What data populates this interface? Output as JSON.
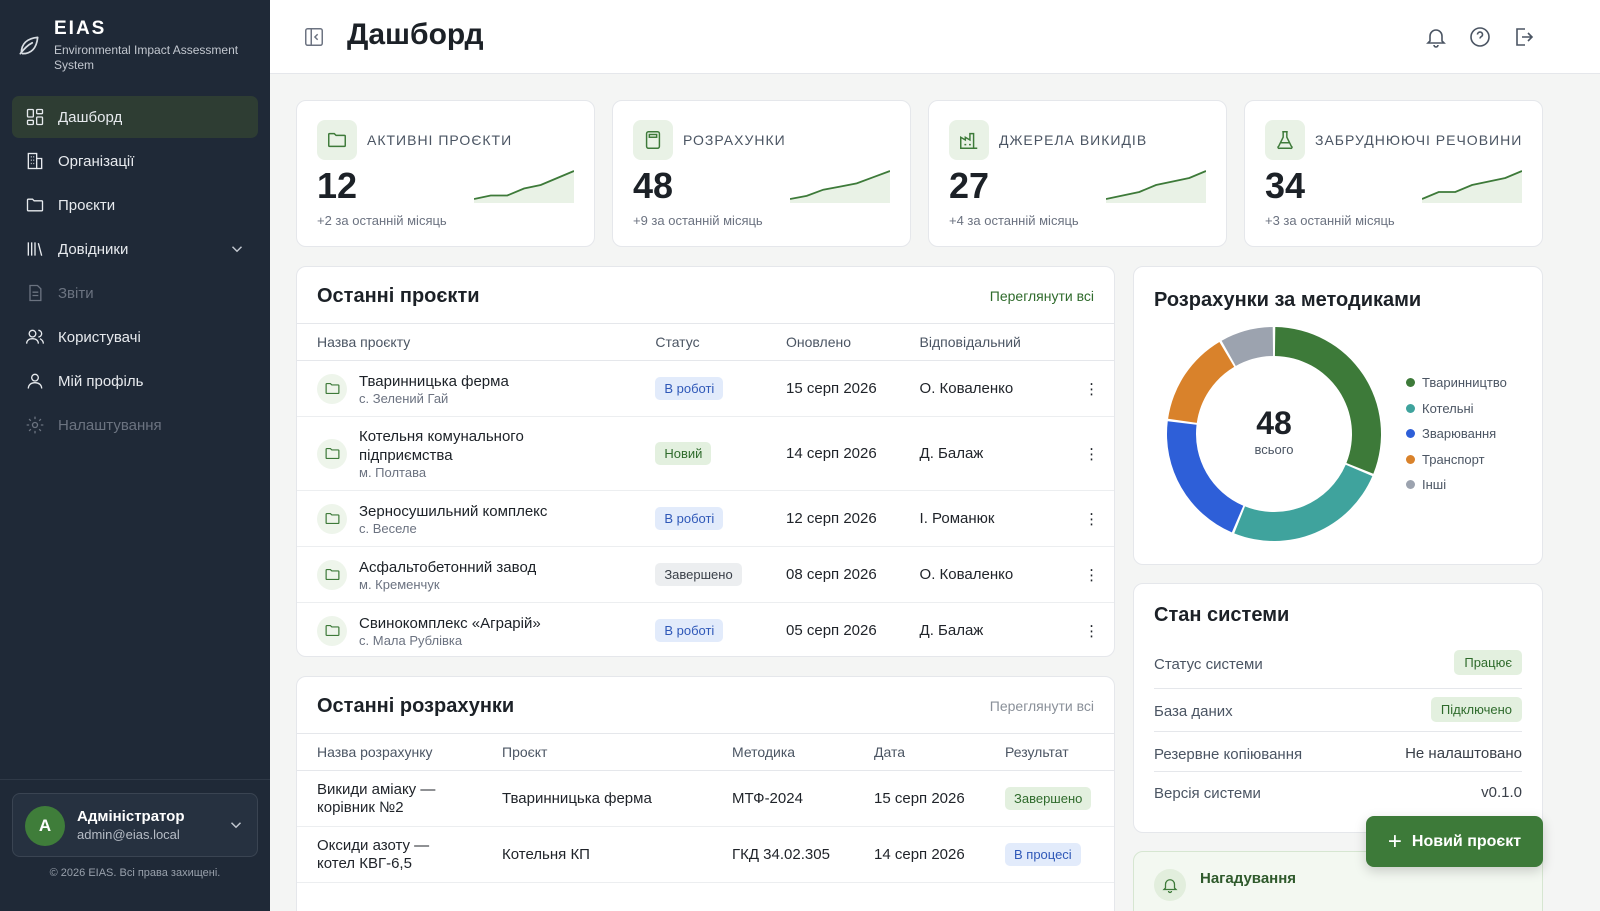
{
  "brand": {
    "name": "EIAS",
    "subtitle": "Environmental Impact Assessment System"
  },
  "sidebar": {
    "items": [
      {
        "label": "Дашборд",
        "icon": "dashboard-icon",
        "active": true
      },
      {
        "label": "Організації",
        "icon": "building-icon"
      },
      {
        "label": "Проєкти",
        "icon": "folder-icon"
      },
      {
        "label": "Довідники",
        "icon": "library-icon"
      },
      {
        "label": "Звіти",
        "icon": "report-icon",
        "disabled": true
      },
      {
        "label": "Користувачі",
        "icon": "users-icon"
      },
      {
        "label": "Мій профіль",
        "icon": "user-icon"
      },
      {
        "label": "Налаштування",
        "icon": "gear-icon",
        "disabled": true
      }
    ],
    "user": {
      "initial": "A",
      "name": "Адміністратор",
      "email": "admin@eias.local"
    },
    "copyright": "© 2026 EIAS. Всі права захищені."
  },
  "header": {
    "title": "Дашборд"
  },
  "stats": [
    {
      "label": "Активні проєкти",
      "value": "12",
      "delta": "+2 за останній місяць",
      "icon": "folder-icon",
      "trend": [
        2,
        3,
        3,
        5,
        6,
        8,
        10
      ]
    },
    {
      "label": "Розрахунки",
      "value": "48",
      "delta": "+9 за останній місяць",
      "icon": "calculator-icon",
      "trend": [
        2,
        3,
        5,
        6,
        7,
        9,
        11
      ]
    },
    {
      "label": "Джерела викидів",
      "value": "27",
      "delta": "+4 за останній місяць",
      "icon": "factory-icon",
      "trend": [
        2,
        3,
        4,
        6,
        7,
        8,
        10
      ]
    },
    {
      "label": "Забруднюючі речовини",
      "value": "34",
      "delta": "+3 за останній місяць",
      "icon": "flask-icon",
      "trend": [
        2,
        4,
        4,
        6,
        7,
        8,
        10
      ]
    }
  ],
  "recent_projects": {
    "title": "Останні проєкти",
    "link": "Переглянути всі",
    "columns": [
      "Назва проєкту",
      "Статус",
      "Оновлено",
      "Відповідальний"
    ],
    "rows": [
      {
        "name": "Тваринницька ферма",
        "location": "с. Зелений Гай",
        "status": "В роботі",
        "status_kind": "work",
        "updated": "15 серп 2026",
        "owner": "О. Коваленко"
      },
      {
        "name": "Котельня комунального підприємства",
        "location": "м. Полтава",
        "status": "Новий",
        "status_kind": "new",
        "updated": "14 серп 2026",
        "owner": "Д. Балаж"
      },
      {
        "name": "Зерносушильний комплекс",
        "location": "с. Веселе",
        "status": "В роботі",
        "status_kind": "work",
        "updated": "12 серп 2026",
        "owner": "І. Романюк"
      },
      {
        "name": "Асфальтобетонний завод",
        "location": "м. Кременчук",
        "status": "Завершено",
        "status_kind": "done",
        "updated": "08 серп 2026",
        "owner": "О. Коваленко"
      },
      {
        "name": "Свинокомплекс «Аграрій»",
        "location": "с. Мала Рублівка",
        "status": "В роботі",
        "status_kind": "work",
        "updated": "05 серп 2026",
        "owner": "Д. Балаж"
      }
    ]
  },
  "recent_calcs": {
    "title": "Останні розрахунки",
    "link": "Переглянути всі",
    "columns": [
      "Назва розрахунку",
      "Проєкт",
      "Методика",
      "Дата",
      "Результат"
    ],
    "rows": [
      {
        "name": "Викиди аміаку — корівник №2",
        "project": "Тваринницька ферма",
        "method": "МТФ-2024",
        "date": "15 серп 2026",
        "result": "Завершено",
        "result_kind": "done-green"
      },
      {
        "name": "Оксиди азоту — котел КВГ-6,5",
        "project": "Котельня КП",
        "method": "ГКД 34.02.305",
        "date": "14 серп 2026",
        "result": "В процесі",
        "result_kind": "work"
      }
    ]
  },
  "methods_chart": {
    "title": "Розрахунки за методиками",
    "center_value": "48",
    "center_label": "всього",
    "chart_data": {
      "type": "pie",
      "categories": [
        "Тваринництво",
        "Котельні",
        "Зварювання",
        "Транспорт",
        "Інші"
      ],
      "values": [
        15,
        12,
        10,
        7,
        4
      ],
      "colors": [
        "#3d7a39",
        "#3fa39d",
        "#2e5fd8",
        "#d9822b",
        "#9ca3af"
      ]
    }
  },
  "system": {
    "title": "Стан системи",
    "rows": [
      {
        "key": "Статус системи",
        "value": "Працює",
        "pill": true
      },
      {
        "key": "База даних",
        "value": "Підключено",
        "pill": true
      },
      {
        "key": "Резервне копіювання",
        "value": "Не налаштовано",
        "pill": false
      },
      {
        "key": "Версія системи",
        "value": "v0.1.0",
        "pill": false
      }
    ]
  },
  "reminders": {
    "title": "Нагадування"
  },
  "fab": {
    "label": "Новий проєкт"
  }
}
